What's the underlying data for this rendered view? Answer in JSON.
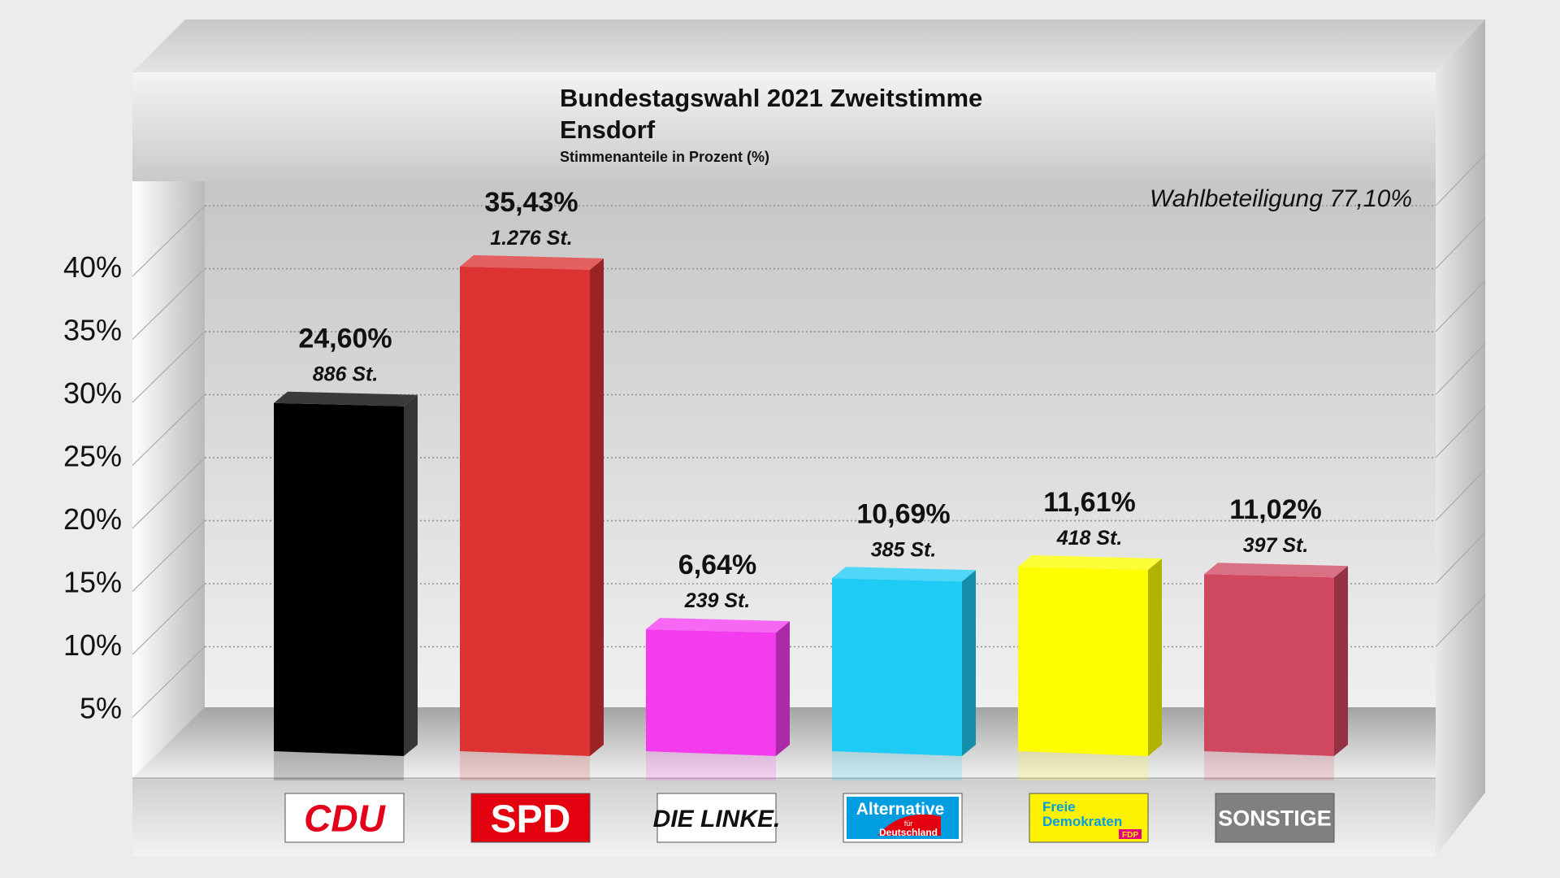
{
  "chart_data": {
    "type": "bar",
    "title": "Bundestagswahl 2021 Zweitstimme",
    "subtitle": "Ensdorf",
    "ylabel": "Stimmenanteile in Prozent (%)",
    "turnout_label": "Wahlbeteiligung 77,10%",
    "ylim": [
      0,
      45
    ],
    "yticks": [
      5,
      10,
      15,
      20,
      25,
      30,
      35,
      40
    ],
    "ytick_labels": [
      "5%",
      "10%",
      "15%",
      "20%",
      "25%",
      "30%",
      "35%",
      "40%"
    ],
    "grid": true,
    "categories": [
      "CDU",
      "SPD",
      "DIE LINKE.",
      "Alternative für Deutschland",
      "Freie Demokraten FDP",
      "SONSTIGE"
    ],
    "values": [
      24.6,
      35.43,
      6.64,
      10.69,
      11.61,
      11.02
    ],
    "value_labels": [
      "24,60%",
      "35,43%",
      "6,64%",
      "10,69%",
      "11,61%",
      "11,02%"
    ],
    "vote_labels": [
      "886 St.",
      "1.276 St.",
      "239 St.",
      "385 St.",
      "418 St.",
      "397 St."
    ],
    "colors": [
      "#000000",
      "#dc3232",
      "#f43cef",
      "#1ecbf4",
      "#fefe00",
      "#d04860"
    ],
    "logos": [
      {
        "text": "CDU",
        "bg": "#ffffff",
        "fg": "#e2001a",
        "border": "#e2001a",
        "icon": "cdu-logo"
      },
      {
        "text": "SPD",
        "bg": "#e3000f",
        "fg": "#ffffff",
        "border": "#e3000f",
        "icon": "spd-logo"
      },
      {
        "text": "DIE LINKE.",
        "bg": "#ffffff",
        "fg": "#111111",
        "border": "#111111",
        "icon": "die-linke-logo"
      },
      {
        "text": "Alternative",
        "sub": "für",
        "sub2": "Deutschland",
        "bg": "#ffffff",
        "fg": "#ffffff",
        "border": "#009ee0",
        "icon": "afd-logo"
      },
      {
        "text": "Freie",
        "sub": "Demokraten",
        "sub2": "FDP",
        "bg": "#fff200",
        "fg": "#009ee0",
        "border": "#fff200",
        "icon": "fdp-logo"
      },
      {
        "text": "SONSTIGE",
        "bg": "#808080",
        "fg": "#ffffff",
        "border": "#808080",
        "icon": "sonstige-logo"
      }
    ]
  }
}
